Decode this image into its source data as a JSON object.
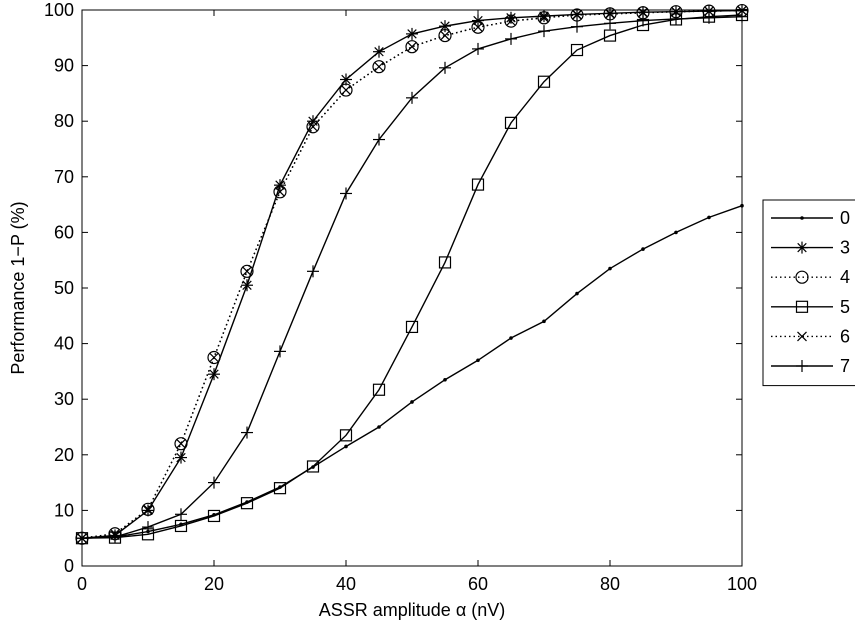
{
  "chart_data": {
    "type": "line",
    "xlabel": "ASSR amplitude α (nV)",
    "ylabel": "Performance 1−P (%)",
    "xlim": [
      0,
      100
    ],
    "ylim": [
      0,
      100
    ],
    "x_ticks": [
      0,
      20,
      40,
      60,
      80,
      100
    ],
    "y_ticks": [
      0,
      10,
      20,
      30,
      40,
      50,
      60,
      70,
      80,
      90,
      100
    ],
    "grid": false,
    "legend_placement": "right",
    "x": [
      0,
      5,
      10,
      15,
      20,
      25,
      30,
      35,
      40,
      45,
      50,
      55,
      60,
      65,
      70,
      75,
      80,
      85,
      90,
      95,
      100
    ],
    "series": [
      {
        "name": "0",
        "marker": "dot",
        "line": "solid",
        "color": "#000000",
        "values": [
          5,
          5.2,
          6.2,
          7.5,
          9.2,
          11.5,
          14.2,
          17.8,
          21.5,
          25.0,
          29.5,
          33.5,
          37.0,
          41.0,
          44.0,
          49.0,
          53.5,
          57.0,
          60.0,
          62.7,
          64.8
        ]
      },
      {
        "name": "3",
        "marker": "asterisk",
        "line": "solid",
        "color": "#000000",
        "values": [
          5,
          5.5,
          10.0,
          19.5,
          34.5,
          50.5,
          68.5,
          80.0,
          87.5,
          92.5,
          95.7,
          97.1,
          98.1,
          98.6,
          98.9,
          99.2,
          99.4,
          99.6,
          99.7,
          99.8,
          99.9
        ]
      },
      {
        "name": "4",
        "marker": "circle",
        "line": "dotted",
        "color": "#000000",
        "values": [
          5,
          5.8,
          10.2,
          22.0,
          37.5,
          53.0,
          67.3,
          79.0,
          85.6,
          89.8,
          93.4,
          95.4,
          96.9,
          98.0,
          98.6,
          99.1,
          99.3,
          99.5,
          99.7,
          99.8,
          99.9
        ]
      },
      {
        "name": "5",
        "marker": "square",
        "line": "solid",
        "color": "#000000",
        "values": [
          5,
          5.1,
          5.7,
          7.2,
          9.0,
          11.3,
          14.0,
          17.9,
          23.5,
          31.7,
          43.0,
          54.6,
          68.6,
          79.7,
          87.1,
          92.8,
          95.4,
          97.3,
          98.3,
          98.8,
          99.1
        ]
      },
      {
        "name": "6",
        "marker": "x",
        "line": "dotted",
        "color": "#000000",
        "values": [
          5,
          5.8,
          10.2,
          22.0,
          37.5,
          53.0,
          67.3,
          79.0,
          85.6,
          89.8,
          93.4,
          95.4,
          96.9,
          98.0,
          98.6,
          99.1,
          99.3,
          99.5,
          99.7,
          99.8,
          99.9
        ]
      },
      {
        "name": "7",
        "marker": "plus",
        "line": "solid",
        "color": "#000000",
        "values": [
          5,
          5.2,
          7.0,
          9.3,
          15.0,
          24.0,
          38.6,
          53.0,
          67.0,
          76.7,
          84.2,
          89.6,
          93.0,
          94.8,
          96.2,
          97.0,
          97.6,
          98.1,
          98.4,
          98.6,
          98.8
        ]
      }
    ]
  }
}
